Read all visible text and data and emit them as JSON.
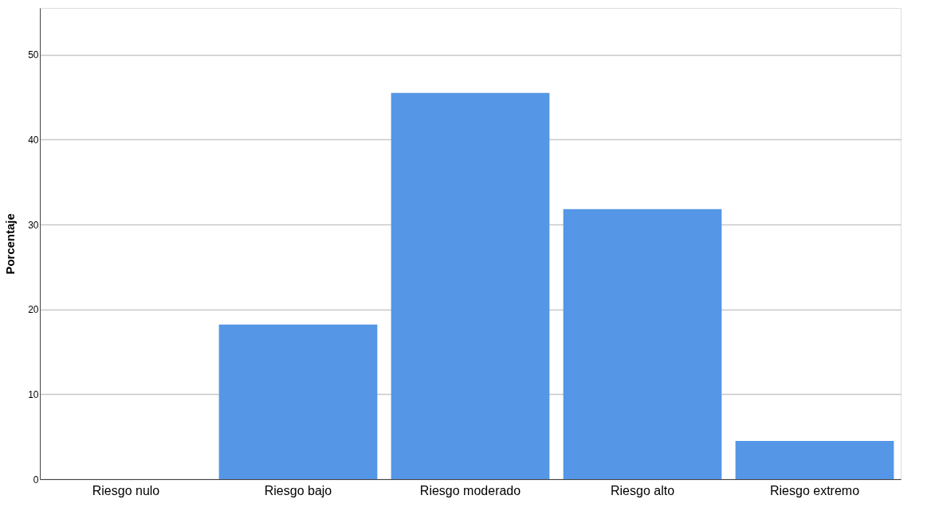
{
  "chart_data": {
    "type": "bar",
    "ylabel": "Porcentaje",
    "categories": [
      "Riesgo nulo",
      "Riesgo bajo",
      "Riesgo moderado",
      "Riesgo alto",
      "Riesgo extremo"
    ],
    "values": [
      0,
      18.2,
      45.5,
      31.8,
      4.5
    ],
    "color": "#5596e6",
    "ylim": [
      0,
      55.5
    ],
    "yticks": [
      0,
      10,
      20,
      30,
      40,
      50
    ],
    "grid": "y"
  }
}
